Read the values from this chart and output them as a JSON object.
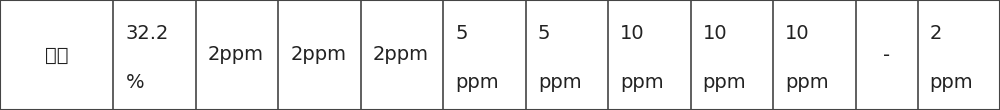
{
  "cells": [
    {
      "lines": [
        "产品"
      ],
      "align": "center"
    },
    {
      "lines": [
        "32.2",
        "%"
      ],
      "align": "left"
    },
    {
      "lines": [
        "2ppm"
      ],
      "align": "left"
    },
    {
      "lines": [
        "2ppm"
      ],
      "align": "left"
    },
    {
      "lines": [
        "2ppm"
      ],
      "align": "left"
    },
    {
      "lines": [
        "5",
        "ppm"
      ],
      "align": "left"
    },
    {
      "lines": [
        "5",
        "ppm"
      ],
      "align": "left"
    },
    {
      "lines": [
        "10",
        "ppm"
      ],
      "align": "left"
    },
    {
      "lines": [
        "10",
        "ppm"
      ],
      "align": "left"
    },
    {
      "lines": [
        "10",
        "ppm"
      ],
      "align": "left"
    },
    {
      "lines": [
        "-"
      ],
      "align": "center"
    },
    {
      "lines": [
        "2",
        "ppm"
      ],
      "align": "left"
    }
  ],
  "col_widths_raw": [
    110,
    80,
    80,
    80,
    80,
    80,
    80,
    80,
    80,
    80,
    60,
    80
  ],
  "bg_color": "#ffffff",
  "border_color": "#444444",
  "text_color": "#222222",
  "font_size": 14,
  "fig_width": 10.0,
  "fig_height": 1.1,
  "dpi": 100
}
